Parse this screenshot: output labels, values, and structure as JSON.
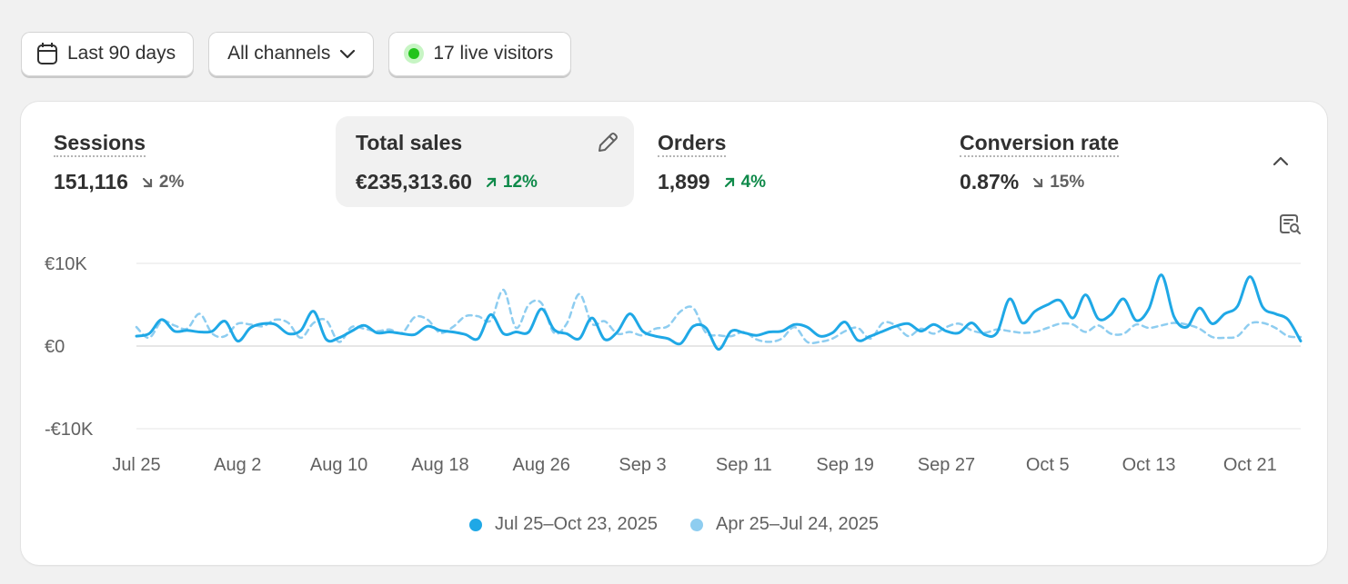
{
  "filters": {
    "date_range": "Last 90 days",
    "channels": "All channels",
    "live_visitors": "17 live visitors"
  },
  "metrics": [
    {
      "label": "Sessions",
      "value": "151,116",
      "delta": "2%",
      "direction": "down"
    },
    {
      "label": "Total sales",
      "value": "€235,313.60",
      "delta": "12%",
      "direction": "up"
    },
    {
      "label": "Orders",
      "value": "1,899",
      "delta": "4%",
      "direction": "up"
    },
    {
      "label": "Conversion rate",
      "value": "0.87%",
      "delta": "15%",
      "direction": "down"
    }
  ],
  "colors": {
    "current": "#1fa8e6",
    "previous": "#8ecdf0",
    "up": "#0f8a4a",
    "down": "#616161"
  },
  "chart_data": {
    "type": "line",
    "ylim": [
      -10000,
      10000
    ],
    "y_ticks": [
      "€10K",
      "€0",
      "-€10K"
    ],
    "y_tick_values": [
      10000,
      0,
      -10000
    ],
    "x_tick_labels": [
      "Jul 25",
      "Aug 2",
      "Aug 10",
      "Aug 18",
      "Aug 26",
      "Sep 3",
      "Sep 11",
      "Sep 19",
      "Sep 27",
      "Oct 5",
      "Oct 13",
      "Oct 21"
    ],
    "x_tick_index": [
      0,
      8,
      16,
      24,
      32,
      40,
      48,
      56,
      64,
      72,
      80,
      88
    ],
    "series": [
      {
        "name": "Jul 25–Oct 23, 2025",
        "style": "solid",
        "values": [
          1200,
          1500,
          3200,
          1800,
          1900,
          1700,
          1800,
          3000,
          600,
          2200,
          2700,
          2600,
          1500,
          1900,
          4200,
          800,
          1000,
          1800,
          2500,
          1600,
          1700,
          1500,
          1400,
          2400,
          1900,
          1700,
          1400,
          900,
          3800,
          1500,
          1700,
          1700,
          4500,
          2000,
          1500,
          900,
          3400,
          800,
          1700,
          3900,
          1800,
          1200,
          900,
          300,
          2400,
          2200,
          -400,
          1800,
          1600,
          1300,
          1700,
          1800,
          2600,
          2300,
          1200,
          1600,
          2900,
          700,
          1200,
          1800,
          2400,
          2700,
          1800,
          2600,
          1800,
          1600,
          2800,
          1400,
          1600,
          5700,
          2800,
          4200,
          5000,
          5500,
          3400,
          6200,
          3300,
          3800,
          5700,
          3100,
          4500,
          8600,
          3500,
          2300,
          4600,
          2700,
          3900,
          4800,
          8400,
          4700,
          3900,
          3200,
          600
        ]
      },
      {
        "name": "Apr 25–Jul 24, 2025",
        "style": "dashed",
        "values": [
          2300,
          1000,
          3000,
          2500,
          2100,
          3900,
          1500,
          1200,
          2700,
          2600,
          2400,
          3200,
          2800,
          1000,
          2800,
          3100,
          500,
          2300,
          2100,
          1800,
          2000,
          1600,
          3500,
          3200,
          1600,
          2300,
          3600,
          3600,
          3100,
          6800,
          2200,
          5000,
          5200,
          1600,
          2700,
          6300,
          2700,
          3000,
          1500,
          1700,
          1300,
          2100,
          2400,
          4200,
          4600,
          1600,
          1300,
          1200,
          1700,
          800,
          500,
          900,
          2300,
          500,
          500,
          900,
          1800,
          2200,
          900,
          2800,
          2500,
          1200,
          2100,
          1500,
          2300,
          2700,
          1900,
          1600,
          2000,
          1800,
          1600,
          1700,
          2200,
          2700,
          2600,
          1700,
          2500,
          1500,
          1500,
          2600,
          2200,
          2500,
          2800,
          2600,
          2100,
          1100,
          1000,
          1200,
          2700,
          2800,
          2200,
          1200,
          1100
        ]
      }
    ]
  }
}
